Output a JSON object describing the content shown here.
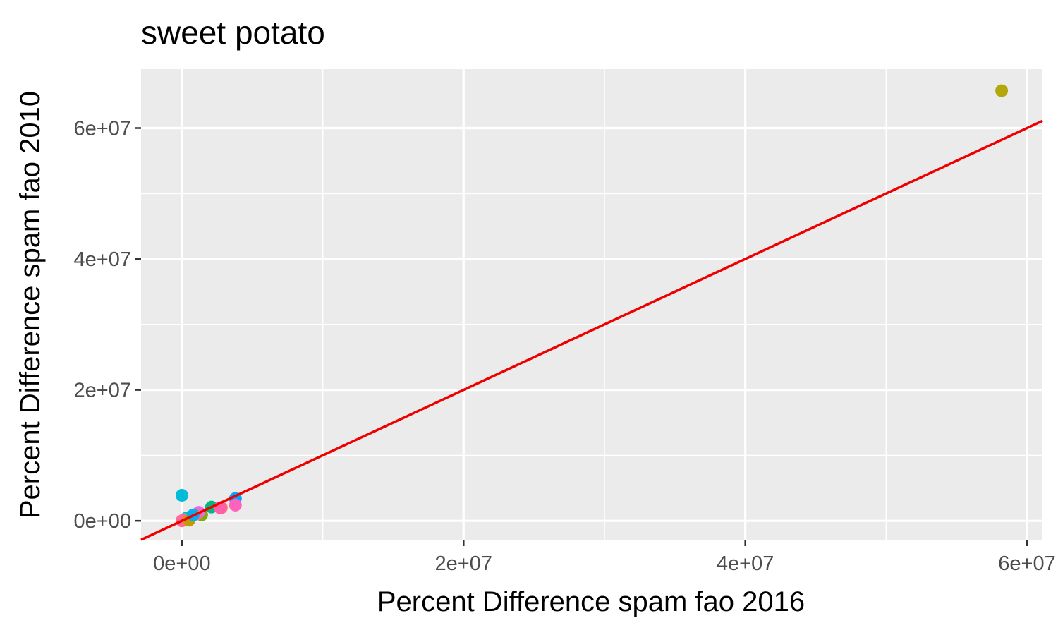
{
  "chart_data": {
    "type": "scatter",
    "title": "sweet potato",
    "xlabel": "Percent Difference spam fao 2016",
    "ylabel": "Percent Difference spam fao 2010",
    "xlim": [
      -2900000,
      61100000
    ],
    "ylim": [
      -3000000,
      69000000
    ],
    "x_ticks": [
      {
        "value": 0,
        "label": "0e+00"
      },
      {
        "value": 20000000,
        "label": "2e+07"
      },
      {
        "value": 40000000,
        "label": "4e+07"
      },
      {
        "value": 60000000,
        "label": "6e+07"
      }
    ],
    "y_ticks": [
      {
        "value": 0,
        "label": "0e+00"
      },
      {
        "value": 20000000,
        "label": "2e+07"
      },
      {
        "value": 40000000,
        "label": "4e+07"
      },
      {
        "value": 60000000,
        "label": "6e+07"
      }
    ],
    "x_minor": [
      10000000,
      30000000,
      50000000
    ],
    "y_minor": [
      10000000,
      30000000,
      50000000
    ],
    "grid": true,
    "panel_background": "#ebebeb",
    "gridline_color": "#ffffff",
    "reference_line": {
      "type": "identity",
      "slope": 1,
      "intercept": 0,
      "color": "#ee0000"
    },
    "points": [
      {
        "x": 58200000,
        "y": 65700000,
        "color": "#b3a70a"
      },
      {
        "x": 0,
        "y": 3900000,
        "color": "#00bcd8"
      },
      {
        "x": 3800000,
        "y": 3400000,
        "color": "#00a5ff"
      },
      {
        "x": 3800000,
        "y": 2400000,
        "color": "#ff62bc"
      },
      {
        "x": 2800000,
        "y": 2000000,
        "color": "#f8766d"
      },
      {
        "x": 2100000,
        "y": 2100000,
        "color": "#00b981"
      },
      {
        "x": 2700000,
        "y": 2000000,
        "color": "#ff5ea8"
      },
      {
        "x": 1400000,
        "y": 900000,
        "color": "#7cae00"
      },
      {
        "x": 1200000,
        "y": 1300000,
        "color": "#e76bf3"
      },
      {
        "x": 1000000,
        "y": 1000000,
        "color": "#ff6c91"
      },
      {
        "x": 600000,
        "y": 600000,
        "color": "#a3a500"
      },
      {
        "x": 400000,
        "y": 300000,
        "color": "#53b400"
      },
      {
        "x": 300000,
        "y": 400000,
        "color": "#00c094"
      },
      {
        "x": 200000,
        "y": 200000,
        "color": "#9590ff"
      },
      {
        "x": 100000,
        "y": 100000,
        "color": "#ff61c3"
      },
      {
        "x": 0,
        "y": 0,
        "color": "#ff6a98"
      },
      {
        "x": 500000,
        "y": 100000,
        "color": "#c49a00"
      },
      {
        "x": 800000,
        "y": 900000,
        "color": "#00b0f6"
      }
    ]
  }
}
